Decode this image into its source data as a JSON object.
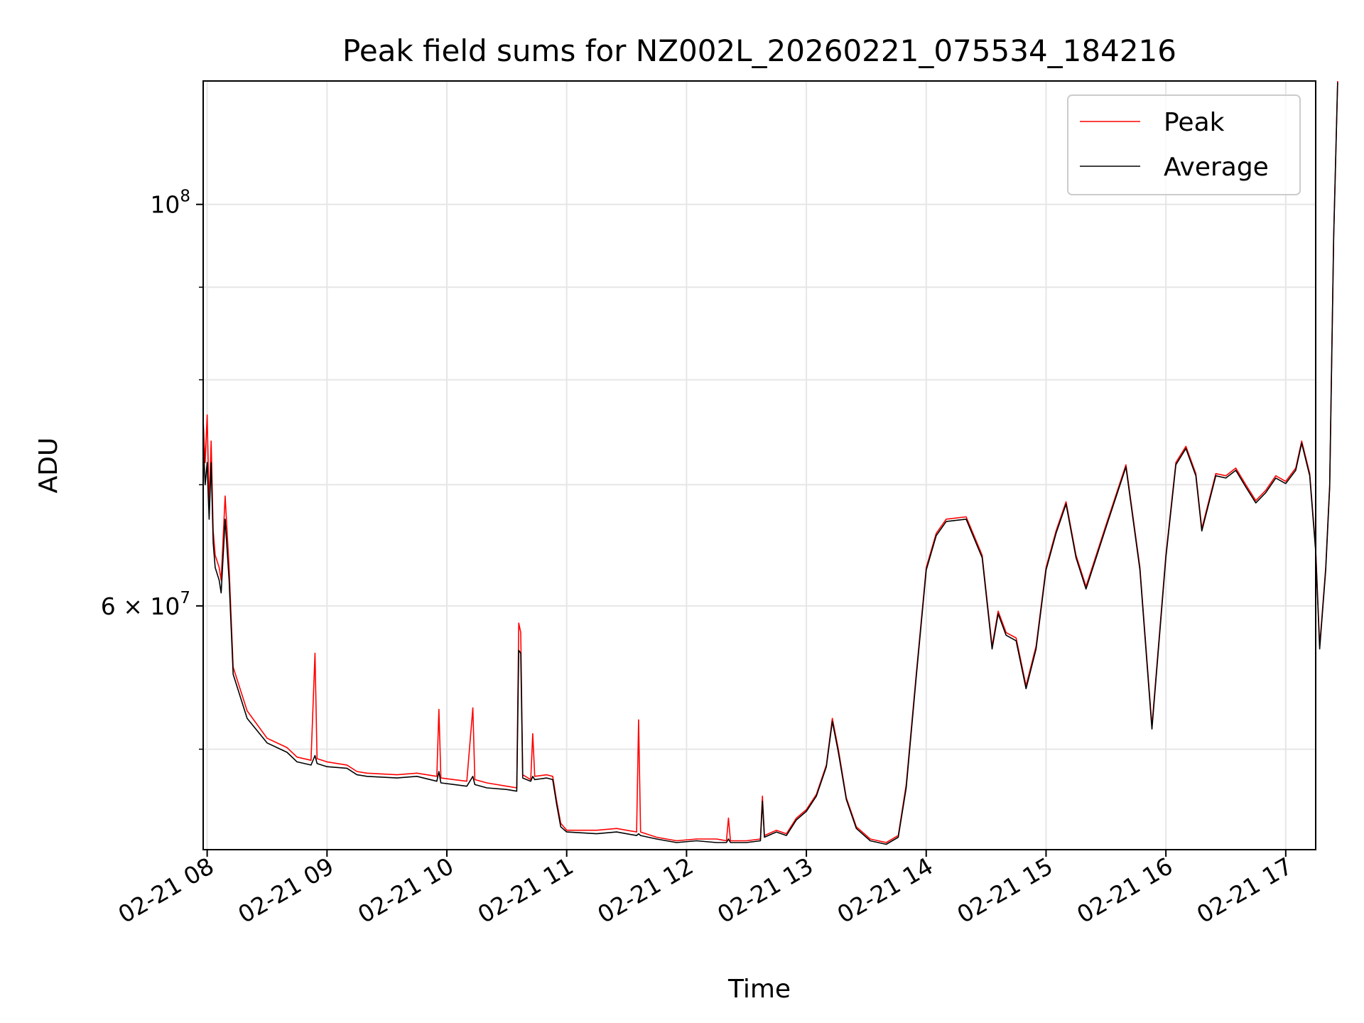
{
  "chart_data": {
    "type": "line",
    "title": "Peak field sums for NZ002L_20260221_075534_184216",
    "xlabel": "Time",
    "ylabel": "ADU",
    "y_scale": "log",
    "ylim": [
      44000000,
      117000000
    ],
    "xlim": [
      "2026-02-21 07:58",
      "2026-02-21 17:15"
    ],
    "grid": true,
    "legend_position": "upper right",
    "x_tick_labels": [
      "02-21 08",
      "02-21 09",
      "02-21 10",
      "02-21 11",
      "02-21 12",
      "02-21 13",
      "02-21 14",
      "02-21 15",
      "02-21 16",
      "02-21 17"
    ],
    "x_ticks": [
      "2026-02-21 08:00",
      "2026-02-21 09:00",
      "2026-02-21 10:00",
      "2026-02-21 11:00",
      "2026-02-21 12:00",
      "2026-02-21 13:00",
      "2026-02-21 14:00",
      "2026-02-21 15:00",
      "2026-02-21 16:00",
      "2026-02-21 17:00"
    ],
    "y_tick_labels": [
      {
        "value": 100000000,
        "mantissa": "10",
        "exp": "8"
      },
      {
        "value": 60000000,
        "mantissa": "6 × 10",
        "exp": "7"
      }
    ],
    "y_minor_ticks": [
      50000000,
      70000000,
      80000000,
      90000000
    ],
    "series": [
      {
        "name": "Peak",
        "color": "#ff0000",
        "points": [
          [
            "2026-02-21 07:58",
            76000000
          ],
          [
            "2026-02-21 07:59",
            72000000
          ],
          [
            "2026-02-21 08:00",
            76500000
          ],
          [
            "2026-02-21 08:01",
            68000000
          ],
          [
            "2026-02-21 08:02",
            74000000
          ],
          [
            "2026-02-21 08:03",
            66000000
          ],
          [
            "2026-02-21 08:04",
            64000000
          ],
          [
            "2026-02-21 08:06",
            63000000
          ],
          [
            "2026-02-21 08:07",
            62000000
          ],
          [
            "2026-02-21 08:09",
            69000000
          ],
          [
            "2026-02-21 08:11",
            63000000
          ],
          [
            "2026-02-21 08:13",
            55500000
          ],
          [
            "2026-02-21 08:20",
            52500000
          ],
          [
            "2026-02-21 08:30",
            50700000
          ],
          [
            "2026-02-21 08:40",
            50100000
          ],
          [
            "2026-02-21 08:45",
            49500000
          ],
          [
            "2026-02-21 08:52",
            49300000
          ],
          [
            "2026-02-21 08:54",
            56500000
          ],
          [
            "2026-02-21 08:55",
            49400000
          ],
          [
            "2026-02-21 09:00",
            49200000
          ],
          [
            "2026-02-21 09:10",
            49000000
          ],
          [
            "2026-02-21 09:15",
            48600000
          ],
          [
            "2026-02-21 09:20",
            48500000
          ],
          [
            "2026-02-21 09:35",
            48400000
          ],
          [
            "2026-02-21 09:45",
            48500000
          ],
          [
            "2026-02-21 09:55",
            48300000
          ],
          [
            "2026-02-21 09:56",
            52600000
          ],
          [
            "2026-02-21 09:57",
            48200000
          ],
          [
            "2026-02-21 10:10",
            48000000
          ],
          [
            "2026-02-21 10:13",
            52700000
          ],
          [
            "2026-02-21 10:14",
            48100000
          ],
          [
            "2026-02-21 10:20",
            47900000
          ],
          [
            "2026-02-21 10:30",
            47700000
          ],
          [
            "2026-02-21 10:35",
            47600000
          ],
          [
            "2026-02-21 10:36",
            58700000
          ],
          [
            "2026-02-21 10:37",
            58000000
          ],
          [
            "2026-02-21 10:38",
            48400000
          ],
          [
            "2026-02-21 10:42",
            48100000
          ],
          [
            "2026-02-21 10:43",
            51000000
          ],
          [
            "2026-02-21 10:44",
            48300000
          ],
          [
            "2026-02-21 10:50",
            48400000
          ],
          [
            "2026-02-21 10:53",
            48300000
          ],
          [
            "2026-02-21 10:55",
            46800000
          ],
          [
            "2026-02-21 10:57",
            45500000
          ],
          [
            "2026-02-21 11:00",
            45100000
          ],
          [
            "2026-02-21 11:15",
            45100000
          ],
          [
            "2026-02-21 11:25",
            45200000
          ],
          [
            "2026-02-21 11:35",
            45000000
          ],
          [
            "2026-02-21 11:36",
            51900000
          ],
          [
            "2026-02-21 11:37",
            45000000
          ],
          [
            "2026-02-21 11:45",
            44700000
          ],
          [
            "2026-02-21 11:55",
            44500000
          ],
          [
            "2026-02-21 12:05",
            44600000
          ],
          [
            "2026-02-21 12:15",
            44600000
          ],
          [
            "2026-02-21 12:20",
            44500000
          ],
          [
            "2026-02-21 12:21",
            45800000
          ],
          [
            "2026-02-21 12:22",
            44500000
          ],
          [
            "2026-02-21 12:30",
            44500000
          ],
          [
            "2026-02-21 12:37",
            44600000
          ],
          [
            "2026-02-21 12:38",
            47100000
          ],
          [
            "2026-02-21 12:39",
            44800000
          ],
          [
            "2026-02-21 12:45",
            45100000
          ],
          [
            "2026-02-21 12:50",
            44900000
          ],
          [
            "2026-02-21 12:55",
            45800000
          ],
          [
            "2026-02-21 13:00",
            46300000
          ],
          [
            "2026-02-21 13:05",
            47200000
          ],
          [
            "2026-02-21 13:10",
            49000000
          ],
          [
            "2026-02-21 13:13",
            52000000
          ],
          [
            "2026-02-21 13:16",
            50000000
          ],
          [
            "2026-02-21 13:20",
            47000000
          ],
          [
            "2026-02-21 13:25",
            45300000
          ],
          [
            "2026-02-21 13:32",
            44600000
          ],
          [
            "2026-02-21 13:40",
            44400000
          ],
          [
            "2026-02-21 13:46",
            44800000
          ],
          [
            "2026-02-21 13:50",
            47800000
          ],
          [
            "2026-02-21 13:55",
            55000000
          ],
          [
            "2026-02-21 14:00",
            63000000
          ],
          [
            "2026-02-21 14:05",
            65800000
          ],
          [
            "2026-02-21 14:10",
            67000000
          ],
          [
            "2026-02-21 14:20",
            67200000
          ],
          [
            "2026-02-21 14:28",
            64000000
          ],
          [
            "2026-02-21 14:33",
            57000000
          ],
          [
            "2026-02-21 14:36",
            59600000
          ],
          [
            "2026-02-21 14:40",
            58000000
          ],
          [
            "2026-02-21 14:45",
            57600000
          ],
          [
            "2026-02-21 14:50",
            54200000
          ],
          [
            "2026-02-21 14:55",
            57000000
          ],
          [
            "2026-02-21 15:00",
            63000000
          ],
          [
            "2026-02-21 15:05",
            66000000
          ],
          [
            "2026-02-21 15:10",
            68500000
          ],
          [
            "2026-02-21 15:15",
            64000000
          ],
          [
            "2026-02-21 15:20",
            61500000
          ],
          [
            "2026-02-21 15:30",
            66500000
          ],
          [
            "2026-02-21 15:40",
            71800000
          ],
          [
            "2026-02-21 15:47",
            63000000
          ],
          [
            "2026-02-21 15:53",
            51500000
          ],
          [
            "2026-02-21 16:00",
            64000000
          ],
          [
            "2026-02-21 16:05",
            72000000
          ],
          [
            "2026-02-21 16:10",
            73500000
          ],
          [
            "2026-02-21 16:15",
            71000000
          ],
          [
            "2026-02-21 16:18",
            66200000
          ],
          [
            "2026-02-21 16:25",
            71000000
          ],
          [
            "2026-02-21 16:30",
            70800000
          ],
          [
            "2026-02-21 16:35",
            71500000
          ],
          [
            "2026-02-21 16:40",
            70000000
          ],
          [
            "2026-02-21 16:45",
            68600000
          ],
          [
            "2026-02-21 16:50",
            69500000
          ],
          [
            "2026-02-21 16:55",
            70800000
          ],
          [
            "2026-02-21 17:00",
            70300000
          ],
          [
            "2026-02-21 17:05",
            71500000
          ],
          [
            "2026-02-21 17:08",
            74000000
          ],
          [
            "2026-02-21 17:12",
            71000000
          ],
          [
            "2026-02-21 17:15",
            64500000
          ],
          [
            "2026-02-21 17:17",
            57000000
          ],
          [
            "2026-02-21 17:20",
            63000000
          ],
          [
            "2026-02-21 17:22",
            70000000
          ],
          [
            "2026-02-21 17:24",
            96000000
          ],
          [
            "2026-02-21 17:26",
            117000000
          ]
        ]
      },
      {
        "name": "Average",
        "color": "#000000",
        "points": [
          [
            "2026-02-21 07:58",
            74000000
          ],
          [
            "2026-02-21 07:59",
            70000000
          ],
          [
            "2026-02-21 08:00",
            72000000
          ],
          [
            "2026-02-21 08:01",
            67000000
          ],
          [
            "2026-02-21 08:02",
            72000000
          ],
          [
            "2026-02-21 08:03",
            65000000
          ],
          [
            "2026-02-21 08:04",
            63000000
          ],
          [
            "2026-02-21 08:06",
            62000000
          ],
          [
            "2026-02-21 08:07",
            61000000
          ],
          [
            "2026-02-21 08:09",
            67000000
          ],
          [
            "2026-02-21 08:11",
            62000000
          ],
          [
            "2026-02-21 08:13",
            55000000
          ],
          [
            "2026-02-21 08:20",
            52000000
          ],
          [
            "2026-02-21 08:30",
            50400000
          ],
          [
            "2026-02-21 08:40",
            49800000
          ],
          [
            "2026-02-21 08:45",
            49200000
          ],
          [
            "2026-02-21 08:52",
            49000000
          ],
          [
            "2026-02-21 08:54",
            49600000
          ],
          [
            "2026-02-21 08:55",
            49100000
          ],
          [
            "2026-02-21 09:00",
            48900000
          ],
          [
            "2026-02-21 09:10",
            48800000
          ],
          [
            "2026-02-21 09:15",
            48400000
          ],
          [
            "2026-02-21 09:20",
            48300000
          ],
          [
            "2026-02-21 09:35",
            48200000
          ],
          [
            "2026-02-21 09:45",
            48300000
          ],
          [
            "2026-02-21 09:55",
            48000000
          ],
          [
            "2026-02-21 09:56",
            48600000
          ],
          [
            "2026-02-21 09:57",
            47900000
          ],
          [
            "2026-02-21 10:10",
            47700000
          ],
          [
            "2026-02-21 10:13",
            48300000
          ],
          [
            "2026-02-21 10:14",
            47800000
          ],
          [
            "2026-02-21 10:20",
            47600000
          ],
          [
            "2026-02-21 10:30",
            47500000
          ],
          [
            "2026-02-21 10:35",
            47400000
          ],
          [
            "2026-02-21 10:36",
            56700000
          ],
          [
            "2026-02-21 10:37",
            56500000
          ],
          [
            "2026-02-21 10:38",
            48200000
          ],
          [
            "2026-02-21 10:42",
            48000000
          ],
          [
            "2026-02-21 10:43",
            48300000
          ],
          [
            "2026-02-21 10:44",
            48100000
          ],
          [
            "2026-02-21 10:50",
            48200000
          ],
          [
            "2026-02-21 10:53",
            48100000
          ],
          [
            "2026-02-21 10:55",
            46600000
          ],
          [
            "2026-02-21 10:57",
            45300000
          ],
          [
            "2026-02-21 11:00",
            45000000
          ],
          [
            "2026-02-21 11:15",
            44900000
          ],
          [
            "2026-02-21 11:25",
            45000000
          ],
          [
            "2026-02-21 11:35",
            44800000
          ],
          [
            "2026-02-21 11:36",
            44900000
          ],
          [
            "2026-02-21 11:37",
            44800000
          ],
          [
            "2026-02-21 11:45",
            44600000
          ],
          [
            "2026-02-21 11:55",
            44400000
          ],
          [
            "2026-02-21 12:05",
            44500000
          ],
          [
            "2026-02-21 12:15",
            44400000
          ],
          [
            "2026-02-21 12:20",
            44400000
          ],
          [
            "2026-02-21 12:21",
            44600000
          ],
          [
            "2026-02-21 12:22",
            44400000
          ],
          [
            "2026-02-21 12:30",
            44400000
          ],
          [
            "2026-02-21 12:37",
            44500000
          ],
          [
            "2026-02-21 12:38",
            46800000
          ],
          [
            "2026-02-21 12:39",
            44700000
          ],
          [
            "2026-02-21 12:45",
            45000000
          ],
          [
            "2026-02-21 12:50",
            44800000
          ],
          [
            "2026-02-21 12:55",
            45700000
          ],
          [
            "2026-02-21 13:00",
            46200000
          ],
          [
            "2026-02-21 13:05",
            47100000
          ],
          [
            "2026-02-21 13:10",
            48900000
          ],
          [
            "2026-02-21 13:13",
            51800000
          ],
          [
            "2026-02-21 13:16",
            49800000
          ],
          [
            "2026-02-21 13:20",
            46900000
          ],
          [
            "2026-02-21 13:25",
            45200000
          ],
          [
            "2026-02-21 13:32",
            44500000
          ],
          [
            "2026-02-21 13:40",
            44300000
          ],
          [
            "2026-02-21 13:46",
            44700000
          ],
          [
            "2026-02-21 13:50",
            47600000
          ],
          [
            "2026-02-21 13:55",
            54800000
          ],
          [
            "2026-02-21 14:00",
            62800000
          ],
          [
            "2026-02-21 14:05",
            65600000
          ],
          [
            "2026-02-21 14:10",
            66800000
          ],
          [
            "2026-02-21 14:20",
            67000000
          ],
          [
            "2026-02-21 14:28",
            63800000
          ],
          [
            "2026-02-21 14:33",
            56800000
          ],
          [
            "2026-02-21 14:36",
            59400000
          ],
          [
            "2026-02-21 14:40",
            57800000
          ],
          [
            "2026-02-21 14:45",
            57400000
          ],
          [
            "2026-02-21 14:50",
            54000000
          ],
          [
            "2026-02-21 14:55",
            56800000
          ],
          [
            "2026-02-21 15:00",
            62800000
          ],
          [
            "2026-02-21 15:05",
            65800000
          ],
          [
            "2026-02-21 15:10",
            68300000
          ],
          [
            "2026-02-21 15:15",
            63800000
          ],
          [
            "2026-02-21 15:20",
            61300000
          ],
          [
            "2026-02-21 15:30",
            66300000
          ],
          [
            "2026-02-21 15:40",
            71600000
          ],
          [
            "2026-02-21 15:47",
            62800000
          ],
          [
            "2026-02-21 15:53",
            51300000
          ],
          [
            "2026-02-21 16:00",
            63800000
          ],
          [
            "2026-02-21 16:05",
            71800000
          ],
          [
            "2026-02-21 16:10",
            73300000
          ],
          [
            "2026-02-21 16:15",
            70800000
          ],
          [
            "2026-02-21 16:18",
            66000000
          ],
          [
            "2026-02-21 16:25",
            70800000
          ],
          [
            "2026-02-21 16:30",
            70600000
          ],
          [
            "2026-02-21 16:35",
            71300000
          ],
          [
            "2026-02-21 16:40",
            69800000
          ],
          [
            "2026-02-21 16:45",
            68400000
          ],
          [
            "2026-02-21 16:50",
            69300000
          ],
          [
            "2026-02-21 16:55",
            70600000
          ],
          [
            "2026-02-21 17:00",
            70100000
          ],
          [
            "2026-02-21 17:05",
            71300000
          ],
          [
            "2026-02-21 17:08",
            73800000
          ],
          [
            "2026-02-21 17:12",
            70800000
          ],
          [
            "2026-02-21 17:15",
            64300000
          ],
          [
            "2026-02-21 17:17",
            56800000
          ],
          [
            "2026-02-21 17:20",
            62800000
          ],
          [
            "2026-02-21 17:22",
            69800000
          ],
          [
            "2026-02-21 17:24",
            95800000
          ],
          [
            "2026-02-21 17:26",
            116800000
          ]
        ]
      }
    ]
  }
}
